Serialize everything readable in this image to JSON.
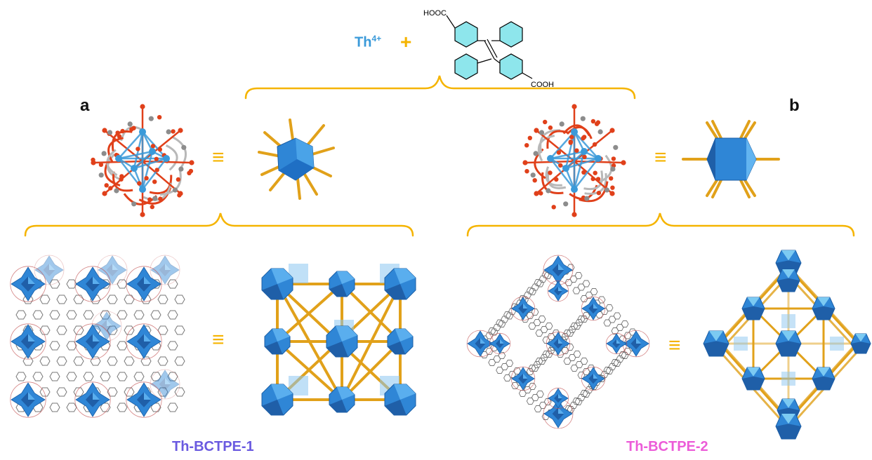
{
  "panel_labels": {
    "a": "a",
    "b": "b"
  },
  "reactants": {
    "metal_ion": "Th",
    "metal_charge": "4+",
    "plus": "+",
    "ligand_group_top": "HOOC",
    "ligand_group_bottom": "COOH"
  },
  "equivalence_symbol": "≡",
  "frameworks": [
    {
      "name": "Th-BCTPE-1",
      "color": "#6a5ae0"
    },
    {
      "name": "Th-BCTPE-2",
      "color": "#ec5cd8"
    }
  ],
  "colors": {
    "bracket": "#f5b400",
    "polyhedron": "#2f86d6",
    "polyhedron_light": "#8cc6f0",
    "rod": "#e1a11a",
    "oxygen": "#e0401a",
    "carbon": "#8c8c8c",
    "thorium": "#3a9ad9",
    "benzene_fill": "#8ee6ec",
    "linker": "#777777"
  }
}
